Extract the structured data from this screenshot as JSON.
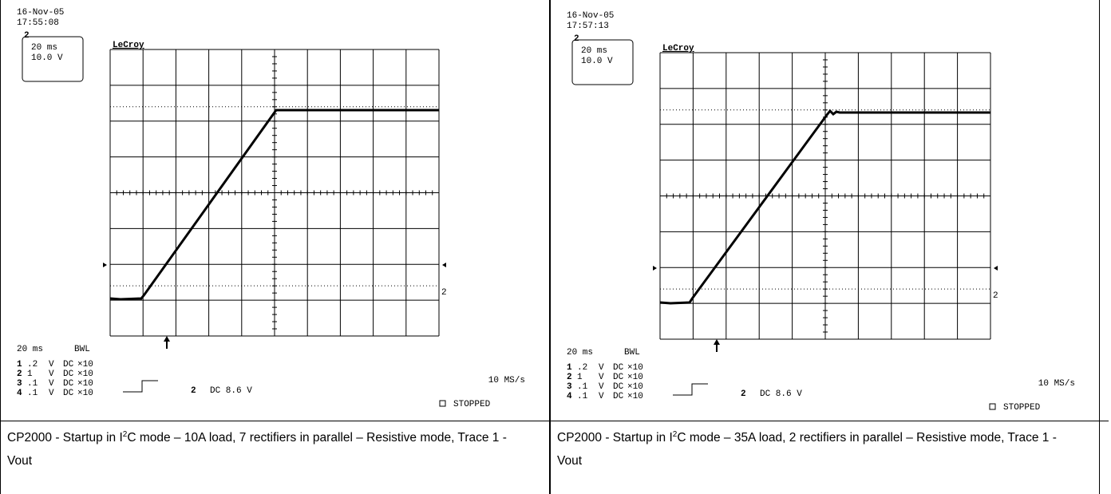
{
  "panels": [
    {
      "date": "16-Nov-05",
      "time": "17:55:08",
      "box_channel": "2",
      "timebase": "20 ms",
      "volts": "10.0 V",
      "brand": "LeCroy",
      "marker": "2",
      "bottom_timebase": "20 ms",
      "bwl": "BWL",
      "channels": [
        {
          "num": "1",
          "scale": ".2",
          "unit": "V",
          "coupling": "DC",
          "probe": "×10"
        },
        {
          "num": "2",
          "scale": "1",
          "unit": "V",
          "coupling": "DC",
          "probe": "×10"
        },
        {
          "num": "3",
          "scale": ".1",
          "unit": "V",
          "coupling": "DC",
          "probe": "×10"
        },
        {
          "num": "4",
          "scale": ".1",
          "unit": "V",
          "coupling": "DC",
          "probe": "×10"
        }
      ],
      "trigger_channel": "2",
      "trigger_level": "DC 8.6 V",
      "rate": "10 MS/s",
      "status": "STOPPED",
      "caption": {
        "before": "CP2000 - Startup in I",
        "sup": "2",
        "after": "C mode – 10A load, 7 rectifiers in parallel – Resistive mode, Trace 1 - Vout"
      }
    },
    {
      "date": "16-Nov-05",
      "time": "17:57:13",
      "box_channel": "2",
      "timebase": "20 ms",
      "volts": "10.0 V",
      "brand": "LeCroy",
      "marker": "2",
      "bottom_timebase": "20 ms",
      "bwl": "BWL",
      "channels": [
        {
          "num": "1",
          "scale": ".2",
          "unit": "V",
          "coupling": "DC",
          "probe": "×10"
        },
        {
          "num": "2",
          "scale": "1",
          "unit": "V",
          "coupling": "DC",
          "probe": "×10"
        },
        {
          "num": "3",
          "scale": ".1",
          "unit": "V",
          "coupling": "DC",
          "probe": "×10"
        },
        {
          "num": "4",
          "scale": ".1",
          "unit": "V",
          "coupling": "DC",
          "probe": "×10"
        }
      ],
      "trigger_channel": "2",
      "trigger_level": "DC 8.6 V",
      "rate": "10 MS/s",
      "status": "STOPPED",
      "caption": {
        "before": "CP2000 - Startup in I",
        "sup": "2",
        "after": "C mode – 35A load, 2 rectifiers in parallel – Resistive mode, Trace 1 - Vout"
      }
    }
  ]
}
